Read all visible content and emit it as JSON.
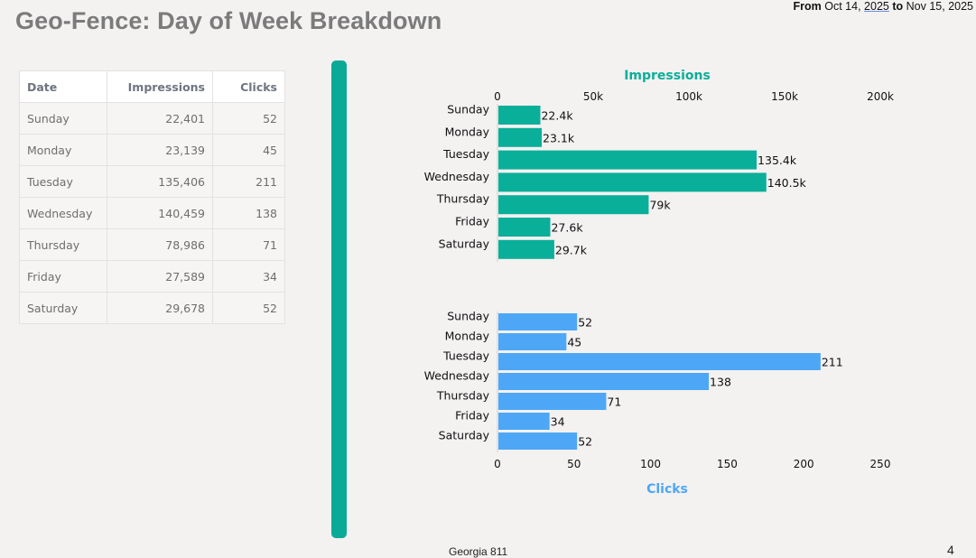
{
  "header": {
    "title": "Geo-Fence: Day of Week Breakdown",
    "from_label": "From",
    "from_date": "Oct 14,",
    "from_year": "2025",
    "to_label": "to",
    "to_date": "Nov 15, 2025"
  },
  "table": {
    "headers": [
      "Date",
      "Impressions",
      "Clicks"
    ],
    "rows": [
      [
        "Sunday",
        "22,401",
        "52"
      ],
      [
        "Monday",
        "23,139",
        "45"
      ],
      [
        "Tuesday",
        "135,406",
        "211"
      ],
      [
        "Wednesday",
        "140,459",
        "138"
      ],
      [
        "Thursday",
        "78,986",
        "71"
      ],
      [
        "Friday",
        "27,589",
        "34"
      ],
      [
        "Saturday",
        "29,678",
        "52"
      ]
    ]
  },
  "colors": {
    "impressions": "#0aaf99",
    "clicks": "#4da7f6",
    "divider": "#0aaa97"
  },
  "chart_data": [
    {
      "type": "bar",
      "orientation": "horizontal",
      "title": "Impressions",
      "categories": [
        "Sunday",
        "Monday",
        "Tuesday",
        "Wednesday",
        "Thursday",
        "Friday",
        "Saturday"
      ],
      "values": [
        22401,
        23139,
        135406,
        140459,
        78986,
        27589,
        29678
      ],
      "data_labels": [
        "22.4k",
        "23.1k",
        "135.4k",
        "140.5k",
        "79k",
        "27.6k",
        "29.7k"
      ],
      "xlim": [
        0,
        200000
      ],
      "ticks": [
        0,
        50000,
        100000,
        150000,
        200000
      ],
      "tick_labels": [
        "0",
        "50k",
        "100k",
        "150k",
        "200k"
      ],
      "axis_position": "top",
      "title_position": "top",
      "grid": false
    },
    {
      "type": "bar",
      "orientation": "horizontal",
      "title": "Clicks",
      "categories": [
        "Sunday",
        "Monday",
        "Tuesday",
        "Wednesday",
        "Thursday",
        "Friday",
        "Saturday"
      ],
      "values": [
        52,
        45,
        211,
        138,
        71,
        34,
        52
      ],
      "data_labels": [
        "52",
        "45",
        "211",
        "138",
        "71",
        "34",
        "52"
      ],
      "xlim": [
        0,
        250
      ],
      "ticks": [
        0,
        50,
        100,
        150,
        200,
        250
      ],
      "tick_labels": [
        "0",
        "50",
        "100",
        "150",
        "200",
        "250"
      ],
      "axis_position": "bottom",
      "title_position": "bottom",
      "grid": false
    }
  ],
  "footer": {
    "text": "Georgia 811",
    "page_number": "4"
  }
}
